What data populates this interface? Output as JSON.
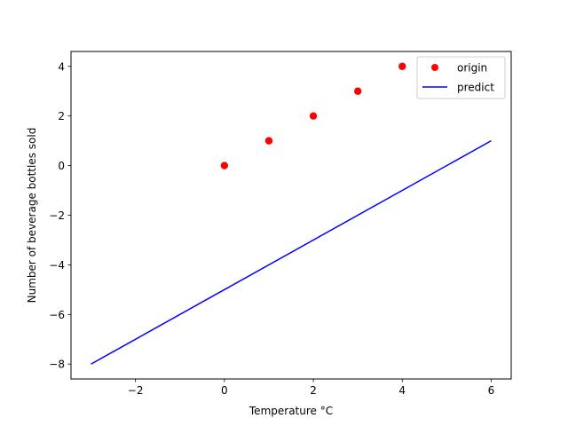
{
  "chart_data": {
    "type": "scatter",
    "title": "",
    "xlabel": "Temperature °C",
    "ylabel": "Number of beverage bottles sold",
    "xlim": [
      -3.45,
      6.45
    ],
    "ylim": [
      -8.6,
      4.6
    ],
    "xticks": [
      -2,
      0,
      2,
      4,
      6
    ],
    "yticks": [
      -8,
      -6,
      -4,
      -2,
      0,
      2,
      4
    ],
    "xtick_labels": [
      "−2",
      "0",
      "2",
      "4",
      "6"
    ],
    "ytick_labels": [
      "−8",
      "−6",
      "−4",
      "−2",
      "0",
      "2",
      "4"
    ],
    "grid": false,
    "legend_position": "top-right",
    "series": [
      {
        "name": "origin",
        "kind": "scatter",
        "color": "#ff0000",
        "x": [
          0,
          1,
          2,
          3,
          4
        ],
        "y": [
          0,
          1,
          2,
          3,
          4
        ]
      },
      {
        "name": "predict",
        "kind": "line",
        "color": "#0000ff",
        "x": [
          -3,
          6
        ],
        "y": [
          -8,
          1
        ]
      }
    ]
  }
}
